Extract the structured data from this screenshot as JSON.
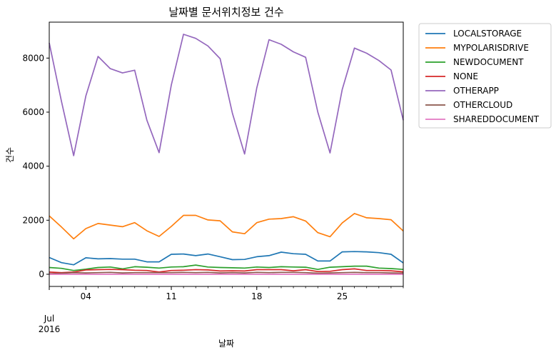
{
  "chart_data": {
    "type": "line",
    "title": "날짜별 문서위치정보 건수",
    "xlabel": "날짜",
    "ylabel": "건수",
    "x_start_label": "Jul\n2016",
    "x": [
      "2016-07-01",
      "2016-07-02",
      "2016-07-03",
      "2016-07-04",
      "2016-07-05",
      "2016-07-06",
      "2016-07-07",
      "2016-07-08",
      "2016-07-09",
      "2016-07-10",
      "2016-07-11",
      "2016-07-12",
      "2016-07-13",
      "2016-07-14",
      "2016-07-15",
      "2016-07-16",
      "2016-07-17",
      "2016-07-18",
      "2016-07-19",
      "2016-07-20",
      "2016-07-21",
      "2016-07-22",
      "2016-07-23",
      "2016-07-24",
      "2016-07-25",
      "2016-07-26",
      "2016-07-27",
      "2016-07-28",
      "2016-07-29",
      "2016-07-30"
    ],
    "x_ticks": [
      {
        "date": "2016-07-04",
        "label": "04"
      },
      {
        "date": "2016-07-11",
        "label": "11"
      },
      {
        "date": "2016-07-18",
        "label": "18"
      },
      {
        "date": "2016-07-25",
        "label": "25"
      }
    ],
    "y_ticks": [
      0,
      2000,
      4000,
      6000,
      8000
    ],
    "ylim": [
      -450,
      9330
    ],
    "grid": false,
    "legend_position": "outside-top-right",
    "series": [
      {
        "name": "LOCALSTORAGE",
        "color": "#1f77b4",
        "values": [
          620,
          430,
          350,
          610,
          570,
          580,
          560,
          560,
          460,
          460,
          740,
          750,
          690,
          750,
          650,
          540,
          550,
          650,
          690,
          820,
          760,
          740,
          490,
          490,
          830,
          840,
          830,
          800,
          740,
          420
        ]
      },
      {
        "name": "MYPOLARISDRIVE",
        "color": "#ff7f0e",
        "values": [
          2160,
          1750,
          1310,
          1690,
          1880,
          1820,
          1760,
          1910,
          1610,
          1400,
          1770,
          2180,
          2180,
          2010,
          1980,
          1570,
          1500,
          1910,
          2040,
          2060,
          2130,
          1970,
          1540,
          1390,
          1900,
          2250,
          2090,
          2060,
          2020,
          1600
        ]
      },
      {
        "name": "NEWDOCUMENT",
        "color": "#2ca02c",
        "values": [
          250,
          220,
          140,
          190,
          250,
          270,
          200,
          280,
          260,
          230,
          270,
          280,
          340,
          270,
          250,
          240,
          230,
          270,
          250,
          280,
          270,
          260,
          180,
          260,
          280,
          300,
          300,
          230,
          210,
          180
        ]
      },
      {
        "name": "NONE",
        "color": "#d62728",
        "values": [
          80,
          60,
          80,
          160,
          170,
          180,
          170,
          150,
          140,
          80,
          140,
          150,
          170,
          160,
          120,
          130,
          120,
          170,
          170,
          170,
          130,
          170,
          100,
          110,
          170,
          200,
          140,
          140,
          130,
          90
        ]
      },
      {
        "name": "OTHERAPP",
        "color": "#9467bd",
        "values": [
          8560,
          6400,
          4390,
          6600,
          8060,
          7610,
          7450,
          7550,
          5700,
          4500,
          7000,
          8880,
          8730,
          8450,
          7980,
          5960,
          4450,
          6900,
          8680,
          8510,
          8230,
          8030,
          6000,
          4490,
          6840,
          8370,
          8180,
          7910,
          7560,
          5700
        ]
      },
      {
        "name": "OTHERCLOUD",
        "color": "#8c564b",
        "values": [
          20,
          40,
          60,
          50,
          60,
          70,
          50,
          60,
          60,
          60,
          60,
          70,
          60,
          70,
          50,
          60,
          50,
          70,
          60,
          70,
          70,
          60,
          40,
          50,
          60,
          70,
          60,
          60,
          50,
          40
        ]
      },
      {
        "name": "SHAREDDOCUMENT",
        "color": "#e377c2",
        "values": [
          0,
          0,
          0,
          0,
          0,
          0,
          0,
          0,
          0,
          0,
          0,
          0,
          0,
          0,
          0,
          0,
          0,
          0,
          0,
          0,
          0,
          0,
          0,
          0,
          0,
          0,
          0,
          0,
          0,
          0
        ]
      }
    ]
  }
}
